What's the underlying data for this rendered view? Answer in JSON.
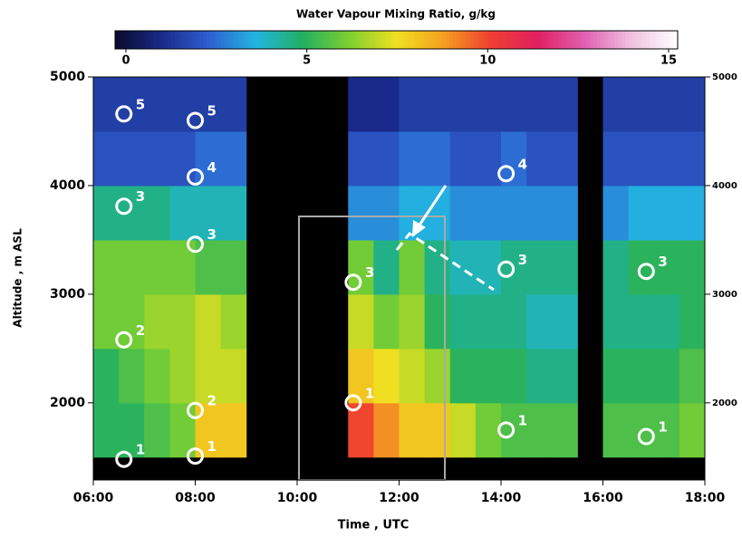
{
  "chart_data": {
    "type": "heatmap",
    "title": "Water Vapour Mixing Ratio, g/kg",
    "xlabel": "Time , UTC",
    "ylabel": "Altitude , m ASL",
    "x": [
      6.25,
      6.75,
      7.25,
      7.75,
      8.25,
      8.75,
      9.25,
      9.75,
      10.25,
      10.75,
      11.25,
      11.75,
      12.25,
      12.75,
      13.25,
      13.75,
      14.25,
      14.75,
      15.25,
      15.75,
      16.25,
      16.75,
      17.25,
      17.75
    ],
    "y": [
      1750,
      2250,
      2750,
      3250,
      3750,
      4250,
      4750
    ],
    "z": [
      [
        5,
        5,
        5.5,
        6,
        8,
        8,
        null,
        null,
        null,
        null,
        10,
        9,
        8,
        8,
        7,
        6,
        5.5,
        5.5,
        5.5,
        null,
        5.5,
        5.5,
        5.5,
        6
      ],
      [
        5,
        5.5,
        6,
        6.5,
        7,
        7,
        null,
        null,
        null,
        null,
        8,
        7.5,
        7,
        6.5,
        5,
        5,
        5,
        4.5,
        4.5,
        null,
        5,
        5,
        5,
        5.5
      ],
      [
        6,
        6,
        6.5,
        6.5,
        7,
        6.5,
        null,
        null,
        null,
        null,
        7,
        6,
        6.5,
        5,
        4.5,
        4.5,
        4.5,
        4,
        4,
        null,
        4.5,
        4.5,
        4.5,
        5
      ],
      [
        6,
        6,
        6,
        6,
        5.5,
        5.5,
        null,
        null,
        null,
        null,
        6,
        4.5,
        6,
        4.5,
        4,
        4,
        4.5,
        4.5,
        4.5,
        null,
        4.5,
        5,
        5,
        5
      ],
      [
        4.5,
        4.5,
        4.5,
        4,
        4,
        4,
        null,
        null,
        null,
        null,
        3,
        3,
        3.5,
        3.5,
        3,
        3,
        3,
        3,
        3,
        null,
        3,
        3.5,
        3.5,
        3.5
      ],
      [
        2,
        2,
        2,
        2,
        2.5,
        2.5,
        null,
        null,
        null,
        null,
        2,
        2,
        2.5,
        2.5,
        2,
        2,
        2.5,
        2,
        2,
        null,
        2,
        2,
        2,
        2
      ],
      [
        1.5,
        1.5,
        1.5,
        1.5,
        1.5,
        1.5,
        null,
        null,
        null,
        null,
        1,
        1,
        1.5,
        1.5,
        1.5,
        1.5,
        1.5,
        1.5,
        1.5,
        null,
        1.5,
        1.5,
        1.5,
        1.5
      ]
    ],
    "xlim": [
      6,
      18
    ],
    "xticks": [
      {
        "value": 6,
        "label": "06:00"
      },
      {
        "value": 8,
        "label": "08:00"
      },
      {
        "value": 10,
        "label": "10:00"
      },
      {
        "value": 12,
        "label": "12:00"
      },
      {
        "value": 14,
        "label": "14:00"
      },
      {
        "value": 16,
        "label": "16:00"
      },
      {
        "value": 18,
        "label": "18:00"
      }
    ],
    "ylim": [
      1290,
      5000
    ],
    "yticks": [
      2000,
      3000,
      4000,
      5000
    ],
    "clim": [
      -0.3,
      15.25
    ],
    "cticks": [
      0,
      5,
      10,
      15
    ],
    "colormap": [
      "#0a0a2a",
      "#1a2a8a",
      "#2f5fd0",
      "#22b5e0",
      "#22b060",
      "#7ed030",
      "#f0e020",
      "#f5a020",
      "#f04030",
      "#e02060",
      "#e060b0",
      "#f0c0e0",
      "#ffffff"
    ],
    "markers": [
      {
        "x": 6.6,
        "y": 1480,
        "label": "1"
      },
      {
        "x": 6.6,
        "y": 2580,
        "label": "2"
      },
      {
        "x": 6.6,
        "y": 3810,
        "label": "3"
      },
      {
        "x": 6.6,
        "y": 4660,
        "label": "5"
      },
      {
        "x": 8.0,
        "y": 1510,
        "label": "1"
      },
      {
        "x": 8.0,
        "y": 1930,
        "label": "2"
      },
      {
        "x": 8.0,
        "y": 3460,
        "label": "3"
      },
      {
        "x": 8.0,
        "y": 4080,
        "label": "4"
      },
      {
        "x": 8.0,
        "y": 4600,
        "label": "5"
      },
      {
        "x": 11.1,
        "y": 2000,
        "label": "1"
      },
      {
        "x": 11.1,
        "y": 3110,
        "label": "3"
      },
      {
        "x": 14.1,
        "y": 1750,
        "label": "1"
      },
      {
        "x": 14.1,
        "y": 3230,
        "label": "3"
      },
      {
        "x": 14.1,
        "y": 4110,
        "label": "4"
      },
      {
        "x": 16.85,
        "y": 1690,
        "label": "1"
      },
      {
        "x": 16.85,
        "y": 3210,
        "label": "3"
      }
    ]
  }
}
